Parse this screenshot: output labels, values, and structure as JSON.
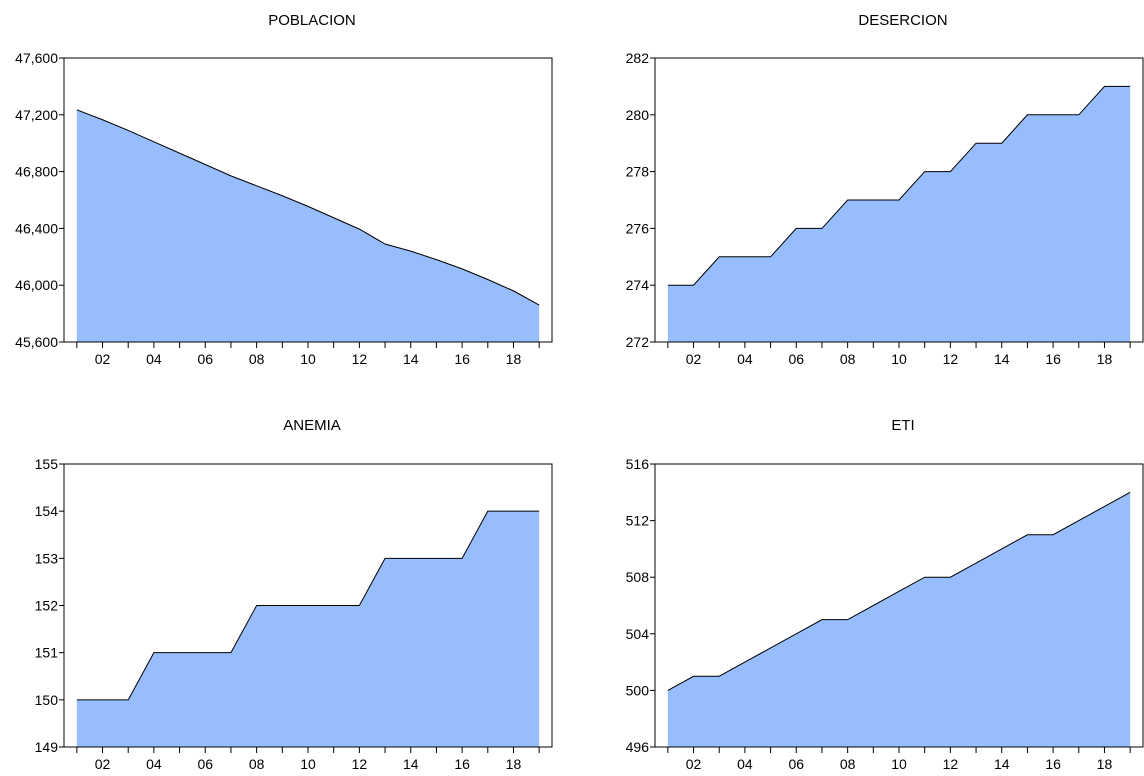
{
  "chart_data": [
    {
      "type": "area",
      "title": "POBLACION",
      "x": [
        2001,
        2002,
        2003,
        2004,
        2005,
        2006,
        2007,
        2008,
        2009,
        2010,
        2011,
        2012,
        2013,
        2014,
        2015,
        2016,
        2017,
        2018,
        2019
      ],
      "values": [
        47235,
        47165,
        47090,
        47010,
        46930,
        46850,
        46770,
        46700,
        46630,
        46555,
        46475,
        46395,
        46290,
        46240,
        46180,
        46115,
        46040,
        45960,
        45860
      ],
      "ylim": [
        45600,
        47600
      ],
      "yticks": [
        45600,
        46000,
        46400,
        46800,
        47200,
        47600
      ],
      "ytick_labels": [
        "45,600",
        "46,000",
        "46,400",
        "46,800",
        "47,200",
        "47,600"
      ],
      "xticks": [
        2002,
        2004,
        2006,
        2008,
        2010,
        2012,
        2014,
        2016,
        2018
      ],
      "xtick_labels": [
        "02",
        "04",
        "06",
        "08",
        "10",
        "12",
        "14",
        "16",
        "18"
      ],
      "xlim": [
        2000.5,
        2019.5
      ]
    },
    {
      "type": "area",
      "title": "DESERCION",
      "x": [
        2001,
        2002,
        2003,
        2004,
        2005,
        2006,
        2007,
        2008,
        2009,
        2010,
        2011,
        2012,
        2013,
        2014,
        2015,
        2016,
        2017,
        2018,
        2019
      ],
      "values": [
        274,
        274,
        275,
        275,
        275,
        276,
        276,
        277,
        277,
        277,
        278,
        278,
        279,
        279,
        280,
        280,
        280,
        281,
        281
      ],
      "ylim": [
        272,
        282
      ],
      "yticks": [
        272,
        274,
        276,
        278,
        280,
        282
      ],
      "ytick_labels": [
        "272",
        "274",
        "276",
        "278",
        "280",
        "282"
      ],
      "xticks": [
        2002,
        2004,
        2006,
        2008,
        2010,
        2012,
        2014,
        2016,
        2018
      ],
      "xtick_labels": [
        "02",
        "04",
        "06",
        "08",
        "10",
        "12",
        "14",
        "16",
        "18"
      ],
      "xlim": [
        2000.5,
        2019.5
      ]
    },
    {
      "type": "area",
      "title": "ANEMIA",
      "x": [
        2001,
        2002,
        2003,
        2004,
        2005,
        2006,
        2007,
        2008,
        2009,
        2010,
        2011,
        2012,
        2013,
        2014,
        2015,
        2016,
        2017,
        2018,
        2019
      ],
      "values": [
        150,
        150,
        150,
        151,
        151,
        151,
        151,
        152,
        152,
        152,
        152,
        152,
        153,
        153,
        153,
        153,
        154,
        154,
        154
      ],
      "ylim": [
        149,
        155
      ],
      "yticks": [
        149,
        150,
        151,
        152,
        153,
        154,
        155
      ],
      "ytick_labels": [
        "149",
        "150",
        "151",
        "152",
        "153",
        "154",
        "155"
      ],
      "xticks": [
        2002,
        2004,
        2006,
        2008,
        2010,
        2012,
        2014,
        2016,
        2018
      ],
      "xtick_labels": [
        "02",
        "04",
        "06",
        "08",
        "10",
        "12",
        "14",
        "16",
        "18"
      ],
      "xlim": [
        2000.5,
        2019.5
      ]
    },
    {
      "type": "area",
      "title": "ETI",
      "x": [
        2001,
        2002,
        2003,
        2004,
        2005,
        2006,
        2007,
        2008,
        2009,
        2010,
        2011,
        2012,
        2013,
        2014,
        2015,
        2016,
        2017,
        2018,
        2019
      ],
      "values": [
        500,
        501,
        501,
        502,
        503,
        504,
        505,
        505,
        506,
        507,
        508,
        508,
        509,
        510,
        511,
        511,
        512,
        513,
        514
      ],
      "ylim": [
        496,
        516
      ],
      "yticks": [
        496,
        500,
        504,
        508,
        512,
        516
      ],
      "ytick_labels": [
        "496",
        "500",
        "504",
        "508",
        "512",
        "516"
      ],
      "xticks": [
        2002,
        2004,
        2006,
        2008,
        2010,
        2012,
        2014,
        2016,
        2018
      ],
      "xtick_labels": [
        "02",
        "04",
        "06",
        "08",
        "10",
        "12",
        "14",
        "16",
        "18"
      ],
      "xlim": [
        2000.5,
        2019.5
      ]
    }
  ],
  "colors": {
    "fill": "#97bdfd",
    "line": "#000000"
  }
}
